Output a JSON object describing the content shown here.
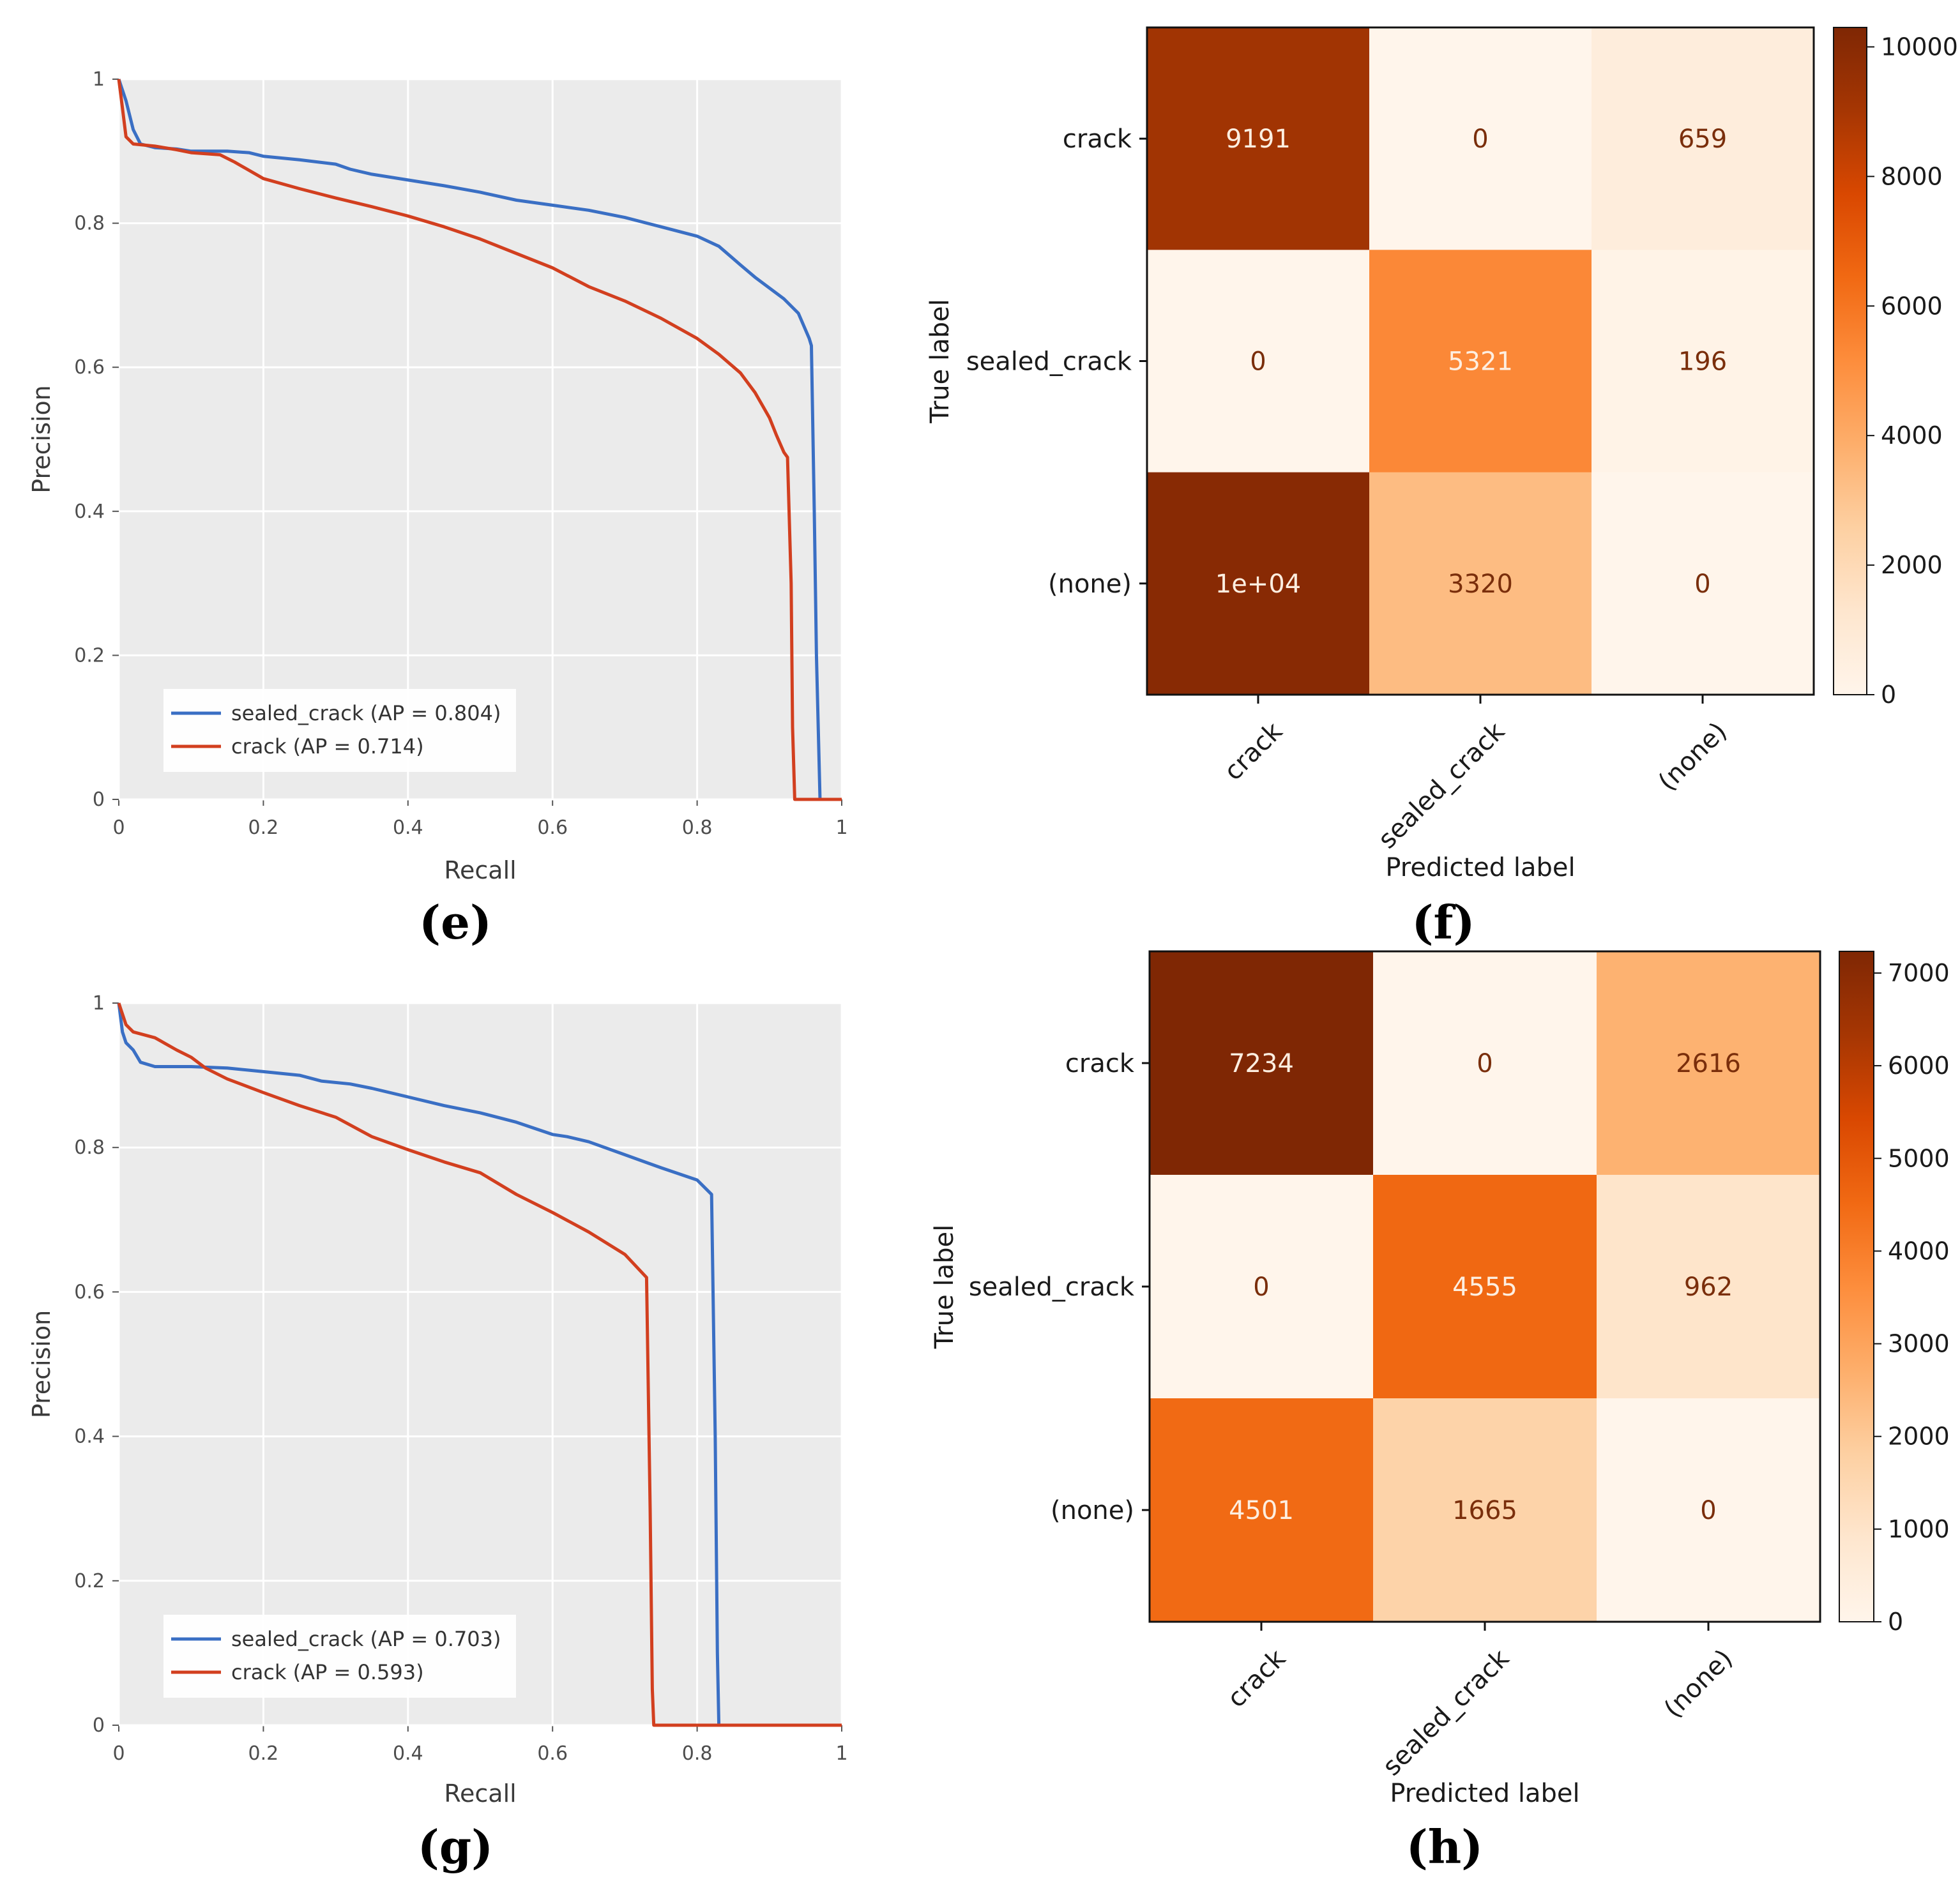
{
  "panels": [
    "(e)",
    "(f)",
    "(g)",
    "(h)"
  ],
  "colors": {
    "sealed_crack": "#3a6fc4",
    "crack": "#d23f1f",
    "plot_background": "#ebebeb",
    "grid": "#ffffff"
  },
  "chart_data": [
    {
      "panel": "(e)",
      "type": "line",
      "xlabel": "Recall",
      "ylabel": "Precision",
      "xlim": [
        0,
        1
      ],
      "ylim": [
        0,
        1
      ],
      "xticks": [
        "0",
        "0.2",
        "0.4",
        "0.6",
        "0.8",
        "1"
      ],
      "yticks": [
        "0",
        "0.2",
        "0.4",
        "0.6",
        "0.8",
        "1"
      ],
      "legend_position": "lower-left",
      "series": [
        {
          "key": "sealed_crack",
          "name": "sealed_crack (AP = 0.804)",
          "points": [
            [
              0,
              1
            ],
            [
              0.01,
              0.97
            ],
            [
              0.02,
              0.93
            ],
            [
              0.03,
              0.91
            ],
            [
              0.05,
              0.905
            ],
            [
              0.08,
              0.903
            ],
            [
              0.1,
              0.9
            ],
            [
              0.15,
              0.9
            ],
            [
              0.18,
              0.898
            ],
            [
              0.2,
              0.893
            ],
            [
              0.25,
              0.888
            ],
            [
              0.3,
              0.882
            ],
            [
              0.32,
              0.875
            ],
            [
              0.35,
              0.868
            ],
            [
              0.4,
              0.86
            ],
            [
              0.45,
              0.852
            ],
            [
              0.5,
              0.843
            ],
            [
              0.55,
              0.832
            ],
            [
              0.6,
              0.825
            ],
            [
              0.65,
              0.818
            ],
            [
              0.7,
              0.808
            ],
            [
              0.75,
              0.795
            ],
            [
              0.8,
              0.782
            ],
            [
              0.83,
              0.768
            ],
            [
              0.86,
              0.742
            ],
            [
              0.88,
              0.725
            ],
            [
              0.9,
              0.71
            ],
            [
              0.92,
              0.695
            ],
            [
              0.94,
              0.675
            ],
            [
              0.955,
              0.64
            ],
            [
              0.958,
              0.63
            ],
            [
              0.962,
              0.4
            ],
            [
              0.965,
              0.2
            ],
            [
              0.97,
              0
            ],
            [
              1,
              0
            ]
          ]
        },
        {
          "key": "crack",
          "name": "crack (AP = 0.714)",
          "points": [
            [
              0,
              1
            ],
            [
              0.005,
              0.96
            ],
            [
              0.01,
              0.92
            ],
            [
              0.02,
              0.91
            ],
            [
              0.05,
              0.907
            ],
            [
              0.08,
              0.902
            ],
            [
              0.1,
              0.898
            ],
            [
              0.14,
              0.895
            ],
            [
              0.16,
              0.885
            ],
            [
              0.2,
              0.862
            ],
            [
              0.25,
              0.848
            ],
            [
              0.3,
              0.835
            ],
            [
              0.35,
              0.823
            ],
            [
              0.4,
              0.81
            ],
            [
              0.45,
              0.795
            ],
            [
              0.5,
              0.778
            ],
            [
              0.55,
              0.758
            ],
            [
              0.6,
              0.738
            ],
            [
              0.65,
              0.712
            ],
            [
              0.7,
              0.692
            ],
            [
              0.75,
              0.668
            ],
            [
              0.8,
              0.64
            ],
            [
              0.83,
              0.618
            ],
            [
              0.86,
              0.592
            ],
            [
              0.88,
              0.565
            ],
            [
              0.9,
              0.53
            ],
            [
              0.91,
              0.505
            ],
            [
              0.92,
              0.482
            ],
            [
              0.925,
              0.475
            ],
            [
              0.93,
              0.3
            ],
            [
              0.932,
              0.1
            ],
            [
              0.935,
              0
            ],
            [
              1,
              0
            ]
          ]
        }
      ]
    },
    {
      "panel": "(f)",
      "type": "heatmap",
      "xlabel": "Predicted label",
      "ylabel": "True label",
      "labels": [
        "crack",
        "sealed_crack",
        "(none)"
      ],
      "matrix": [
        [
          9191,
          0,
          659
        ],
        [
          0,
          5321,
          196
        ],
        [
          10000,
          3320,
          0
        ]
      ],
      "cell_text": [
        [
          "9191",
          "0",
          "659"
        ],
        [
          "0",
          "5321",
          "196"
        ],
        [
          "1e+04",
          "3320",
          "0"
        ]
      ],
      "colorbar": {
        "min": 0,
        "max": 10300,
        "ticks": [
          0,
          2000,
          4000,
          6000,
          8000,
          10000
        ],
        "tick_labels": [
          "0",
          "2000",
          "4000",
          "6000",
          "8000",
          "10000"
        ]
      }
    },
    {
      "panel": "(g)",
      "type": "line",
      "xlabel": "Recall",
      "ylabel": "Precision",
      "xlim": [
        0,
        1
      ],
      "ylim": [
        0,
        1
      ],
      "xticks": [
        "0",
        "0.2",
        "0.4",
        "0.6",
        "0.8",
        "1"
      ],
      "yticks": [
        "0",
        "0.2",
        "0.4",
        "0.6",
        "0.8",
        "1"
      ],
      "legend_position": "lower-left",
      "series": [
        {
          "key": "sealed_crack",
          "name": "sealed_crack (AP = 0.703)",
          "points": [
            [
              0,
              1
            ],
            [
              0.005,
              0.96
            ],
            [
              0.01,
              0.945
            ],
            [
              0.02,
              0.935
            ],
            [
              0.03,
              0.918
            ],
            [
              0.05,
              0.912
            ],
            [
              0.1,
              0.912
            ],
            [
              0.15,
              0.91
            ],
            [
              0.2,
              0.905
            ],
            [
              0.25,
              0.9
            ],
            [
              0.28,
              0.892
            ],
            [
              0.32,
              0.888
            ],
            [
              0.35,
              0.882
            ],
            [
              0.4,
              0.87
            ],
            [
              0.45,
              0.858
            ],
            [
              0.5,
              0.848
            ],
            [
              0.55,
              0.835
            ],
            [
              0.6,
              0.818
            ],
            [
              0.62,
              0.815
            ],
            [
              0.65,
              0.808
            ],
            [
              0.7,
              0.79
            ],
            [
              0.75,
              0.772
            ],
            [
              0.8,
              0.755
            ],
            [
              0.82,
              0.735
            ],
            [
              0.825,
              0.4
            ],
            [
              0.828,
              0.1
            ],
            [
              0.83,
              0
            ],
            [
              1,
              0
            ]
          ]
        },
        {
          "key": "crack",
          "name": "crack (AP = 0.593)",
          "points": [
            [
              0,
              1
            ],
            [
              0.01,
              0.97
            ],
            [
              0.02,
              0.96
            ],
            [
              0.05,
              0.952
            ],
            [
              0.08,
              0.935
            ],
            [
              0.1,
              0.925
            ],
            [
              0.12,
              0.91
            ],
            [
              0.15,
              0.895
            ],
            [
              0.2,
              0.876
            ],
            [
              0.25,
              0.858
            ],
            [
              0.3,
              0.842
            ],
            [
              0.35,
              0.815
            ],
            [
              0.4,
              0.797
            ],
            [
              0.45,
              0.78
            ],
            [
              0.5,
              0.765
            ],
            [
              0.55,
              0.735
            ],
            [
              0.6,
              0.71
            ],
            [
              0.65,
              0.683
            ],
            [
              0.7,
              0.652
            ],
            [
              0.73,
              0.62
            ],
            [
              0.735,
              0.3
            ],
            [
              0.738,
              0.05
            ],
            [
              0.74,
              0
            ],
            [
              1,
              0
            ]
          ]
        }
      ]
    },
    {
      "panel": "(h)",
      "type": "heatmap",
      "xlabel": "Predicted label",
      "ylabel": "True label",
      "labels": [
        "crack",
        "sealed_crack",
        "(none)"
      ],
      "matrix": [
        [
          7234,
          0,
          2616
        ],
        [
          0,
          4555,
          962
        ],
        [
          4501,
          1665,
          0
        ]
      ],
      "cell_text": [
        [
          "7234",
          "0",
          "2616"
        ],
        [
          "0",
          "4555",
          "962"
        ],
        [
          "4501",
          "1665",
          "0"
        ]
      ],
      "colorbar": {
        "min": 0,
        "max": 7234,
        "ticks": [
          0,
          1000,
          2000,
          3000,
          4000,
          5000,
          6000,
          7000
        ],
        "tick_labels": [
          "0",
          "1000",
          "2000",
          "3000",
          "4000",
          "5000",
          "6000",
          "7000"
        ]
      }
    }
  ]
}
